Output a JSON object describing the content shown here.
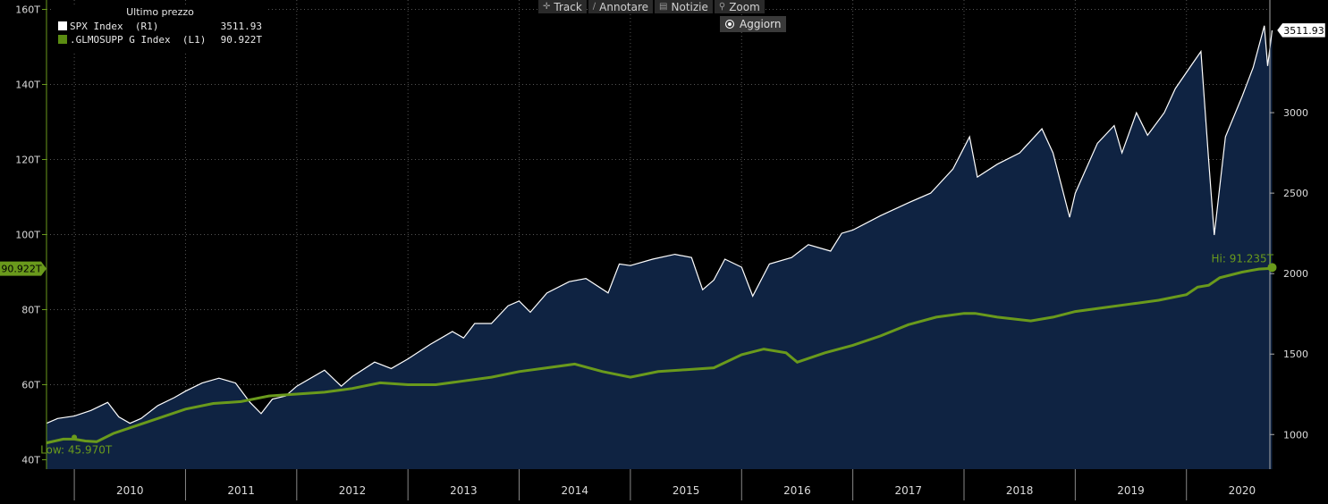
{
  "legend": {
    "title": "Ultimo prezzo",
    "rows": [
      {
        "name": "SPX Index  (R1)",
        "value": "3511.93",
        "color": "#ffffff"
      },
      {
        "name": ".GLMOSUPP G Index  (L1)",
        "value": "90.922T",
        "color": "#5b8c12"
      }
    ]
  },
  "toolbar": {
    "track": "Track",
    "annotate": "Annotare",
    "news": "Notizie",
    "zoom": "Zoom",
    "refresh": "Aggiorn"
  },
  "chart_data": {
    "type": "line",
    "x_tick_labels": [
      "2010",
      "2011",
      "2012",
      "2013",
      "2014",
      "2015",
      "2016",
      "2017",
      "2018",
      "2019",
      "2020"
    ],
    "x_range": [
      2009.75,
      2020.75
    ],
    "left_axis": {
      "ylim": [
        37.5,
        162.5
      ],
      "tick_values": [
        40,
        60,
        80,
        100,
        120,
        140,
        160
      ],
      "tick_labels": [
        "40T",
        "60T",
        "80T",
        "100T",
        "120T",
        "140T",
        "160T"
      ]
    },
    "right_axis": {
      "ylim": [
        785,
        3700
      ],
      "tick_values": [
        1000,
        1500,
        2000,
        2500,
        3000
      ],
      "tick_labels": [
        "1000",
        "1500",
        "2000",
        "2500",
        "3000"
      ]
    },
    "series": [
      {
        "name": "SPX Index",
        "axis": "right",
        "style": "area",
        "color": "#ffffff",
        "fill": "#0f2342",
        "last_value_label": "3511.93",
        "points": [
          [
            2009.75,
            1070
          ],
          [
            2009.85,
            1100
          ],
          [
            2010.0,
            1115
          ],
          [
            2010.15,
            1150
          ],
          [
            2010.3,
            1200
          ],
          [
            2010.4,
            1110
          ],
          [
            2010.5,
            1070
          ],
          [
            2010.6,
            1100
          ],
          [
            2010.75,
            1180
          ],
          [
            2010.9,
            1230
          ],
          [
            2011.0,
            1270
          ],
          [
            2011.15,
            1320
          ],
          [
            2011.3,
            1350
          ],
          [
            2011.45,
            1320
          ],
          [
            2011.58,
            1200
          ],
          [
            2011.68,
            1130
          ],
          [
            2011.78,
            1220
          ],
          [
            2011.9,
            1240
          ],
          [
            2012.0,
            1300
          ],
          [
            2012.25,
            1400
          ],
          [
            2012.4,
            1300
          ],
          [
            2012.5,
            1360
          ],
          [
            2012.7,
            1450
          ],
          [
            2012.85,
            1410
          ],
          [
            2013.0,
            1470
          ],
          [
            2013.2,
            1560
          ],
          [
            2013.4,
            1640
          ],
          [
            2013.5,
            1600
          ],
          [
            2013.6,
            1690
          ],
          [
            2013.75,
            1690
          ],
          [
            2013.9,
            1800
          ],
          [
            2014.0,
            1830
          ],
          [
            2014.1,
            1760
          ],
          [
            2014.25,
            1880
          ],
          [
            2014.45,
            1950
          ],
          [
            2014.6,
            1970
          ],
          [
            2014.8,
            1880
          ],
          [
            2014.9,
            2060
          ],
          [
            2015.0,
            2050
          ],
          [
            2015.2,
            2090
          ],
          [
            2015.4,
            2120
          ],
          [
            2015.55,
            2100
          ],
          [
            2015.65,
            1900
          ],
          [
            2015.75,
            1960
          ],
          [
            2015.85,
            2090
          ],
          [
            2016.0,
            2040
          ],
          [
            2016.1,
            1860
          ],
          [
            2016.25,
            2060
          ],
          [
            2016.45,
            2100
          ],
          [
            2016.6,
            2180
          ],
          [
            2016.8,
            2140
          ],
          [
            2016.9,
            2250
          ],
          [
            2017.0,
            2270
          ],
          [
            2017.25,
            2360
          ],
          [
            2017.5,
            2440
          ],
          [
            2017.7,
            2500
          ],
          [
            2017.9,
            2650
          ],
          [
            2018.05,
            2850
          ],
          [
            2018.12,
            2600
          ],
          [
            2018.3,
            2680
          ],
          [
            2018.5,
            2750
          ],
          [
            2018.7,
            2900
          ],
          [
            2018.8,
            2750
          ],
          [
            2018.95,
            2350
          ],
          [
            2019.0,
            2500
          ],
          [
            2019.2,
            2810
          ],
          [
            2019.35,
            2920
          ],
          [
            2019.42,
            2750
          ],
          [
            2019.55,
            3000
          ],
          [
            2019.65,
            2860
          ],
          [
            2019.8,
            3000
          ],
          [
            2019.9,
            3150
          ],
          [
            2020.05,
            3300
          ],
          [
            2020.13,
            3380
          ],
          [
            2020.2,
            2700
          ],
          [
            2020.25,
            2240
          ],
          [
            2020.35,
            2850
          ],
          [
            2020.5,
            3100
          ],
          [
            2020.6,
            3280
          ],
          [
            2020.7,
            3540
          ],
          [
            2020.73,
            3290
          ],
          [
            2020.77,
            3511.93
          ]
        ]
      },
      {
        "name": ".GLMOSUPP G Index",
        "axis": "left",
        "style": "line",
        "color": "#6a9a1c",
        "last_value_label": "90.922T",
        "points": [
          [
            2009.75,
            44.5
          ],
          [
            2009.9,
            45.5
          ],
          [
            2010.0,
            45.5
          ],
          [
            2010.1,
            45.0
          ],
          [
            2010.2,
            44.8
          ],
          [
            2010.35,
            47.0
          ],
          [
            2010.55,
            49.0
          ],
          [
            2010.75,
            51.0
          ],
          [
            2011.0,
            53.5
          ],
          [
            2011.25,
            55.0
          ],
          [
            2011.5,
            55.5
          ],
          [
            2011.75,
            57.0
          ],
          [
            2012.0,
            57.5
          ],
          [
            2012.25,
            58.0
          ],
          [
            2012.5,
            59.0
          ],
          [
            2012.75,
            60.5
          ],
          [
            2013.0,
            60.0
          ],
          [
            2013.25,
            60.0
          ],
          [
            2013.5,
            61.0
          ],
          [
            2013.75,
            62.0
          ],
          [
            2014.0,
            63.5
          ],
          [
            2014.25,
            64.5
          ],
          [
            2014.5,
            65.5
          ],
          [
            2014.75,
            63.5
          ],
          [
            2015.0,
            62.0
          ],
          [
            2015.25,
            63.5
          ],
          [
            2015.5,
            64.0
          ],
          [
            2015.75,
            64.5
          ],
          [
            2016.0,
            68.0
          ],
          [
            2016.2,
            69.5
          ],
          [
            2016.4,
            68.5
          ],
          [
            2016.5,
            66.0
          ],
          [
            2016.75,
            68.5
          ],
          [
            2017.0,
            70.5
          ],
          [
            2017.25,
            73.0
          ],
          [
            2017.5,
            76.0
          ],
          [
            2017.75,
            78.0
          ],
          [
            2018.0,
            79.0
          ],
          [
            2018.1,
            79.0
          ],
          [
            2018.3,
            78.0
          ],
          [
            2018.6,
            77.0
          ],
          [
            2018.8,
            78.0
          ],
          [
            2019.0,
            79.5
          ],
          [
            2019.25,
            80.5
          ],
          [
            2019.5,
            81.5
          ],
          [
            2019.75,
            82.5
          ],
          [
            2020.0,
            84.0
          ],
          [
            2020.1,
            86.0
          ],
          [
            2020.2,
            86.5
          ],
          [
            2020.3,
            88.5
          ],
          [
            2020.5,
            90.0
          ],
          [
            2020.65,
            90.8
          ],
          [
            2020.77,
            91.0
          ]
        ]
      }
    ],
    "annotations": [
      {
        "text": "Low: 45.970T",
        "x": 2010.0,
        "y": 45.97,
        "axis": "left"
      },
      {
        "text": "Hi: 91.235T",
        "x": 2020.77,
        "y": 91.235,
        "axis": "left"
      }
    ],
    "current_value_tags": [
      {
        "text": "3511.93",
        "axis": "right",
        "y": 3511.93
      },
      {
        "text": "90.922T",
        "axis": "left",
        "y": 90.922
      }
    ]
  }
}
